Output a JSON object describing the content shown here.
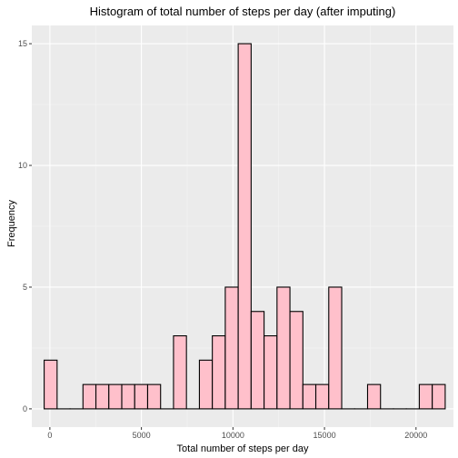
{
  "chart_data": {
    "type": "bar",
    "title": "Histogram of total number of steps per day (after imputing)",
    "xlabel": "Total number of steps per day",
    "ylabel": "Frequency",
    "xlim": [
      -987,
      22045
    ],
    "ylim": [
      -0.75,
      15.75
    ],
    "grid": true,
    "legend": "none",
    "x_ticks": [
      0,
      5000,
      10000,
      15000,
      20000
    ],
    "x_tick_labels": [
      "0",
      "5000",
      "10000",
      "15000",
      "20000"
    ],
    "y_ticks": [
      0,
      5,
      10,
      15
    ],
    "y_tick_labels": [
      "0",
      "5",
      "10",
      "15"
    ],
    "bin_width": 706.6,
    "bin_centers": [
      41,
      748,
      1454,
      2161,
      2868,
      3574,
      4281,
      4987,
      5694,
      6401,
      7107,
      7814,
      8521,
      9227,
      9934,
      10640,
      11347,
      12054,
      12760,
      13467,
      14173,
      14880,
      15587,
      16293,
      17000,
      17707,
      18413,
      19120,
      19826,
      20533,
      21240
    ],
    "values": [
      2,
      0,
      0,
      1,
      1,
      1,
      1,
      1,
      1,
      0,
      3,
      0,
      2,
      3,
      5,
      15,
      4,
      3,
      5,
      4,
      1,
      1,
      5,
      0,
      0,
      1,
      0,
      0,
      0,
      1,
      1
    ],
    "colors": {
      "panel_background": "#ebebeb",
      "grid_major": "#ffffff",
      "grid_minor": "#f5f5f5",
      "bar_fill": "#ffc0cb",
      "bar_stroke": "#000000",
      "tick": "#333333"
    }
  }
}
